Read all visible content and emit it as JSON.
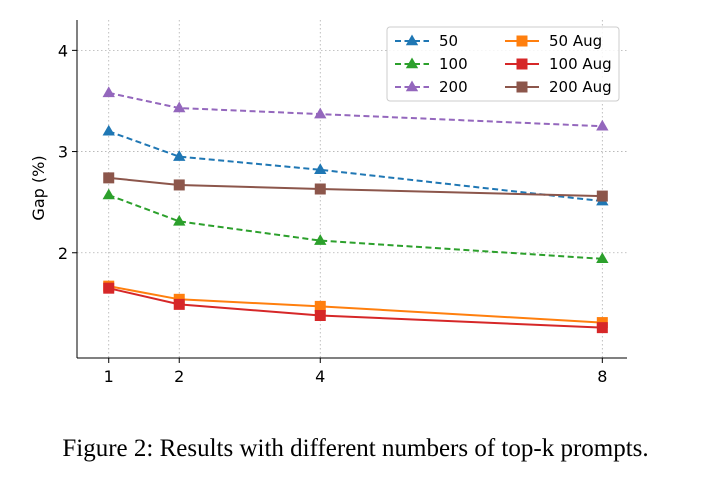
{
  "caption": "Figure 2: Results with different numbers of top-k prompts.",
  "chart_data": {
    "type": "line",
    "title": "",
    "xlabel": "",
    "ylabel": "Gap (%)",
    "x": [
      1,
      2,
      4,
      8
    ],
    "x_ticks": [
      1,
      2,
      4,
      8
    ],
    "y_ticks": [
      2,
      3,
      4
    ],
    "xlim": [
      0.55,
      8.35
    ],
    "ylim": [
      0.96,
      4.3
    ],
    "grid": true,
    "legend_position": "top-right",
    "legend_columns": 2,
    "series": [
      {
        "name": "50",
        "values": [
          3.2,
          2.95,
          2.82,
          2.51
        ],
        "color": "#1f77b4",
        "dash": "dashed",
        "marker": "triangle"
      },
      {
        "name": "100",
        "values": [
          2.57,
          2.31,
          2.12,
          1.94
        ],
        "color": "#2ca02c",
        "dash": "dashed",
        "marker": "triangle"
      },
      {
        "name": "200",
        "values": [
          3.58,
          3.43,
          3.37,
          3.25
        ],
        "color": "#9467bd",
        "dash": "dashed",
        "marker": "triangle"
      },
      {
        "name": "50 Aug",
        "values": [
          1.67,
          1.54,
          1.47,
          1.31
        ],
        "color": "#ff7f0e",
        "dash": "solid",
        "marker": "square"
      },
      {
        "name": "100 Aug",
        "values": [
          1.65,
          1.49,
          1.38,
          1.26
        ],
        "color": "#d62728",
        "dash": "solid",
        "marker": "square"
      },
      {
        "name": "200 Aug",
        "values": [
          2.74,
          2.67,
          2.63,
          2.56
        ],
        "color": "#8c564b",
        "dash": "solid",
        "marker": "square"
      }
    ]
  }
}
